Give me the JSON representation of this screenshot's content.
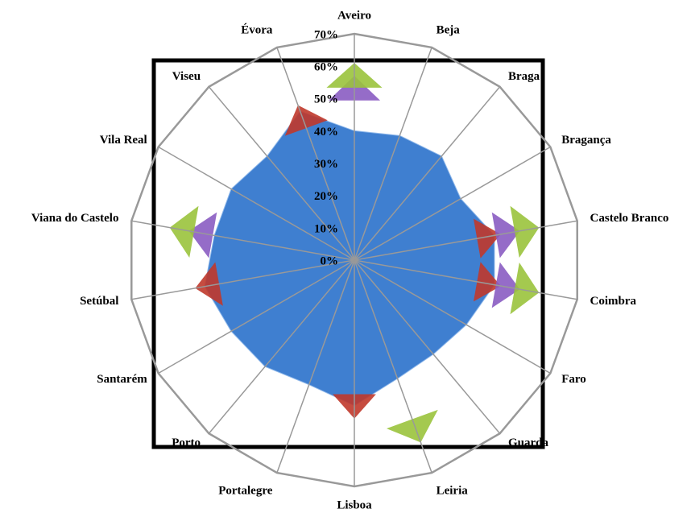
{
  "chart_data": {
    "type": "radar",
    "categories": [
      "Aveiro",
      "Beja",
      "Braga",
      "Bragança",
      "Castelo Branco",
      "Coimbra",
      "Faro",
      "Guarda",
      "Leiria",
      "Lisboa",
      "Portalegre",
      "Porto",
      "Santarém",
      "Setúbal",
      "Viana do Castelo",
      "Vila Real",
      "Viseu",
      "Évora"
    ],
    "series": [
      {
        "color": "#3f7fd0",
        "values": [
          40,
          41,
          42,
          38,
          44,
          44,
          40,
          38,
          39,
          45,
          41,
          43,
          44,
          47,
          44,
          44,
          42,
          49
        ]
      },
      {
        "color": "#c0392b",
        "values": [
          null,
          null,
          null,
          null,
          46,
          46,
          null,
          null,
          null,
          49,
          null,
          null,
          null,
          50,
          null,
          null,
          null,
          51
        ]
      },
      {
        "color": "#8a5cc2",
        "values": [
          57,
          null,
          null,
          null,
          52,
          52,
          null,
          null,
          null,
          null,
          null,
          null,
          null,
          null,
          52,
          null,
          null,
          null
        ]
      },
      {
        "color": "#9ac33c",
        "values": [
          61,
          null,
          null,
          null,
          58,
          58,
          null,
          null,
          60,
          null,
          null,
          null,
          null,
          null,
          58,
          null,
          null,
          null
        ]
      }
    ],
    "ylim": [
      0,
      70
    ],
    "yticks": [
      {
        "value": 0,
        "label": "0%"
      },
      {
        "value": 10,
        "label": "10%"
      },
      {
        "value": 20,
        "label": "20%"
      },
      {
        "value": 30,
        "label": "30%"
      },
      {
        "value": 40,
        "label": "40%"
      },
      {
        "value": 50,
        "label": "50%"
      },
      {
        "value": 60,
        "label": "60%"
      },
      {
        "value": 70,
        "label": "70%"
      }
    ],
    "grid": true
  }
}
